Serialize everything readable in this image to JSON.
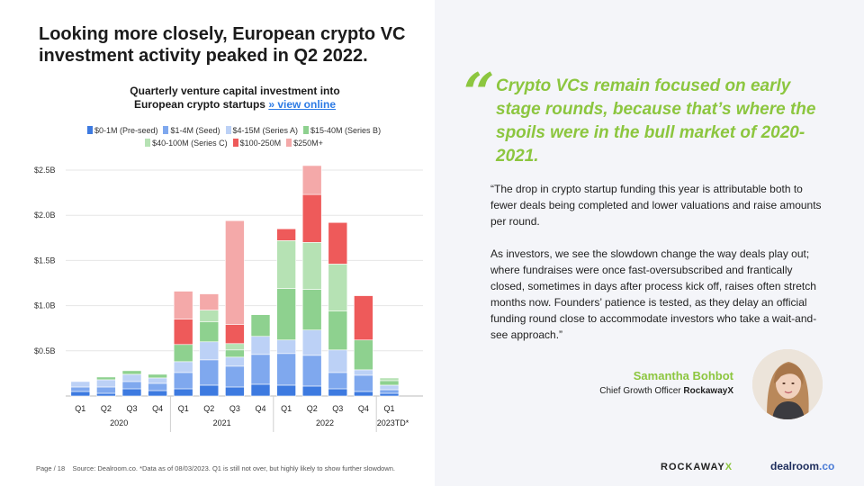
{
  "headline": "Looking more closely, European crypto VC investment activity peaked in Q2 2022.",
  "chart_title": {
    "line1": "Quarterly venture capital investment into",
    "line2": "European crypto startups ",
    "link": "» view online"
  },
  "colors": {
    "s0": "#3d7ae0",
    "s1": "#7fa8ee",
    "s2": "#bcd1f6",
    "s3": "#8ed18f",
    "s4": "#b6e2b4",
    "s5": "#ee5a5a",
    "s6": "#f4a9a9",
    "accent": "#8cc63f"
  },
  "chart_data": {
    "type": "bar",
    "stacked": true,
    "title": "Quarterly venture capital investment into European crypto startups",
    "categories": [
      "Q1",
      "Q2",
      "Q3",
      "Q4",
      "Q1",
      "Q2",
      "Q3",
      "Q4",
      "Q1",
      "Q2",
      "Q3",
      "Q4",
      "Q1"
    ],
    "year_groups": [
      {
        "label": "2020",
        "start": 0,
        "end": 3
      },
      {
        "label": "2021",
        "start": 4,
        "end": 7
      },
      {
        "label": "2022",
        "start": 8,
        "end": 11
      },
      {
        "label": "2023TD*",
        "start": 12,
        "end": 12
      }
    ],
    "series": [
      {
        "name": "$0-1M (Pre-seed)",
        "color_key": "s0",
        "values": [
          0.05,
          0.03,
          0.08,
          0.06,
          0.08,
          0.12,
          0.1,
          0.13,
          0.12,
          0.11,
          0.08,
          0.05,
          0.03
        ]
      },
      {
        "name": "$1-4M (Seed)",
        "color_key": "s1",
        "values": [
          0.05,
          0.07,
          0.08,
          0.08,
          0.18,
          0.28,
          0.23,
          0.33,
          0.35,
          0.34,
          0.18,
          0.18,
          0.04
        ]
      },
      {
        "name": "$4-15M (Series A)",
        "color_key": "s2",
        "values": [
          0.06,
          0.08,
          0.08,
          0.06,
          0.12,
          0.2,
          0.1,
          0.2,
          0.15,
          0.28,
          0.25,
          0.06,
          0.05
        ]
      },
      {
        "name": "$15-40M (Series B)",
        "color_key": "s3",
        "values": [
          0,
          0.03,
          0.04,
          0.04,
          0.19,
          0.22,
          0.08,
          0.24,
          0.57,
          0.45,
          0.43,
          0.33,
          0.05
        ]
      },
      {
        "name": "$40-100M (Series C)",
        "color_key": "s4",
        "values": [
          0,
          0,
          0,
          0,
          0,
          0.13,
          0.07,
          0,
          0.53,
          0.52,
          0.52,
          0,
          0.03
        ]
      },
      {
        "name": "$100-250M",
        "color_key": "s5",
        "values": [
          0,
          0,
          0,
          0,
          0.28,
          0,
          0.21,
          0,
          0.13,
          0.53,
          0.46,
          0.49,
          0
        ]
      },
      {
        "name": "$250M+",
        "color_key": "s6",
        "values": [
          0,
          0,
          0,
          0,
          0.31,
          0.18,
          1.15,
          0,
          0,
          0.32,
          0,
          0,
          0
        ]
      }
    ],
    "ylim": [
      0,
      2.5
    ],
    "yticks": [
      {
        "value": 0.5,
        "label": "$0.5B"
      },
      {
        "value": 1.0,
        "label": "$1.0B"
      },
      {
        "value": 1.5,
        "label": "$1.5B"
      },
      {
        "value": 2.0,
        "label": "$2.0B"
      },
      {
        "value": 2.5,
        "label": "$2.5B"
      }
    ],
    "xlabel": "",
    "ylabel": ""
  },
  "footer": {
    "page": "Page / 18",
    "source": "Source: Dealroom.co.  *Data as of 08/03/2023. Q1 is still not over, but highly likely to show further slowdown."
  },
  "quote": {
    "mark": "“",
    "title": "Crypto VCs remain focused on early stage rounds, because that’s where the spoils were in the bull market of 2020-2021.",
    "paragraph1": "“The drop in crypto startup funding this year is attributable both to fewer deals being completed and lower valuations and raise amounts per round.",
    "paragraph2": "As investors, we see the slowdown change the way deals play out; where fundraises were once fast-oversubscribed and frantically closed, sometimes in days after process kick off, raises often stretch months now. Founders’ patience is tested, as they delay an official funding round close to accommodate investors who take a wait-and-see approach.”"
  },
  "person": {
    "name": "Samantha Bohbot",
    "role": "Chief Growth Officer ",
    "company": "RockawayX"
  },
  "logos": {
    "rockaway": "ROCKAWAY",
    "rockaway_x": "X",
    "dealroom": "dealroom",
    "dealroom_suffix": ".co"
  }
}
